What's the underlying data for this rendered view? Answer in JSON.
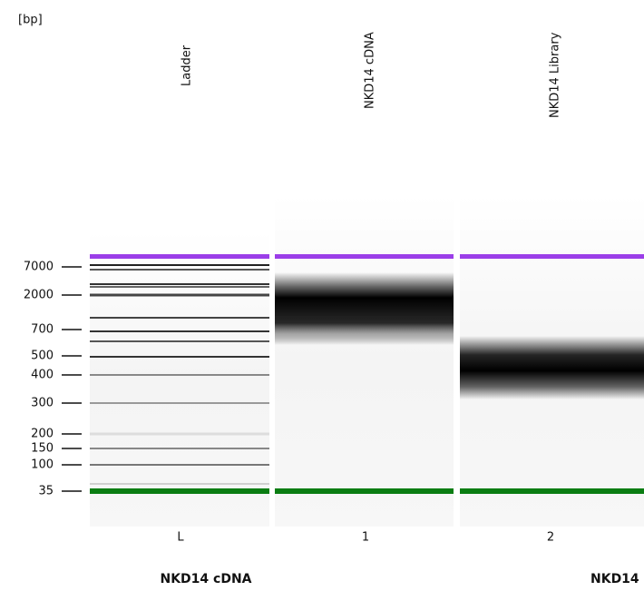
{
  "axis": {
    "unit": "[bp]",
    "ticks": [
      7000,
      2000,
      700,
      500,
      400,
      300,
      200,
      150,
      100,
      35
    ]
  },
  "lanes": [
    {
      "name": "Ladder",
      "number": "L"
    },
    {
      "name": "NKD14 cDNA",
      "number": "1"
    },
    {
      "name": "NKD14 Library",
      "number": "2"
    }
  ],
  "samples": [
    "NKD14 cDNA",
    "NKD14"
  ]
}
